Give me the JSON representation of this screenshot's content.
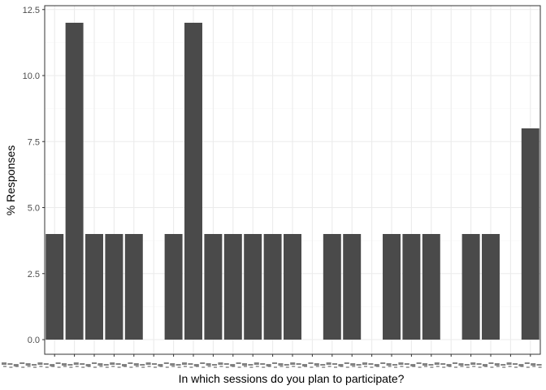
{
  "chart_data": {
    "type": "bar",
    "title": "",
    "xlabel": "In which sessions do you plan to participate?",
    "ylabel": "% Responses",
    "ylim": [
      0,
      12.5
    ],
    "yticks": [
      0,
      2.5,
      5,
      7.5,
      10,
      12.5
    ],
    "ytick_labels": [
      "0.0",
      "2.5",
      "5.0",
      "7.5",
      "10.0",
      "12.5"
    ],
    "grid": true,
    "x_tick_labels_legible": false,
    "values": [
      4,
      12,
      4,
      4,
      4,
      0,
      4,
      12,
      4,
      4,
      4,
      4,
      4,
      0,
      4,
      4,
      0,
      4,
      4,
      4,
      0,
      4,
      4,
      0,
      8
    ]
  },
  "colors": {
    "bar": "#4a4a4a",
    "grid_major": "#ebebeb",
    "grid_minor": "#f5f5f5",
    "panel_border": "#333333",
    "axis_text": "#4d4d4d"
  }
}
